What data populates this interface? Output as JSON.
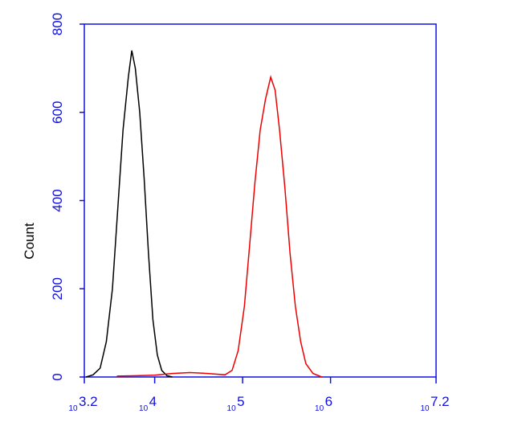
{
  "chart_data": {
    "type": "line",
    "ylabel": "Count",
    "xlim": [
      3.2,
      7.2
    ],
    "xticks": [
      3.2,
      4,
      5,
      6,
      7.2
    ],
    "xtick_base": "10",
    "ylim": [
      0,
      800
    ],
    "yticks": [
      0,
      200,
      400,
      600,
      800
    ],
    "axis_color": "#1010e0",
    "series": [
      {
        "color": "#000000",
        "x": [
          3.22,
          3.3,
          3.38,
          3.45,
          3.52,
          3.58,
          3.64,
          3.7,
          3.74,
          3.78,
          3.83,
          3.88,
          3.93,
          3.98,
          4.03,
          4.08,
          4.14,
          4.2
        ],
        "values": [
          0,
          5,
          20,
          80,
          200,
          380,
          560,
          680,
          740,
          700,
          600,
          450,
          280,
          130,
          50,
          15,
          3,
          0
        ]
      },
      {
        "color": "#ee0000",
        "x": [
          3.57,
          3.8,
          4.0,
          4.2,
          4.4,
          4.6,
          4.8,
          4.88,
          4.95,
          5.02,
          5.08,
          5.14,
          5.2,
          5.26,
          5.32,
          5.37,
          5.42,
          5.48,
          5.54,
          5.6,
          5.66,
          5.72,
          5.8,
          5.9
        ],
        "values": [
          2,
          3,
          4,
          8,
          10,
          8,
          5,
          15,
          60,
          160,
          300,
          440,
          560,
          630,
          680,
          650,
          560,
          430,
          280,
          160,
          80,
          30,
          8,
          0
        ]
      }
    ]
  }
}
